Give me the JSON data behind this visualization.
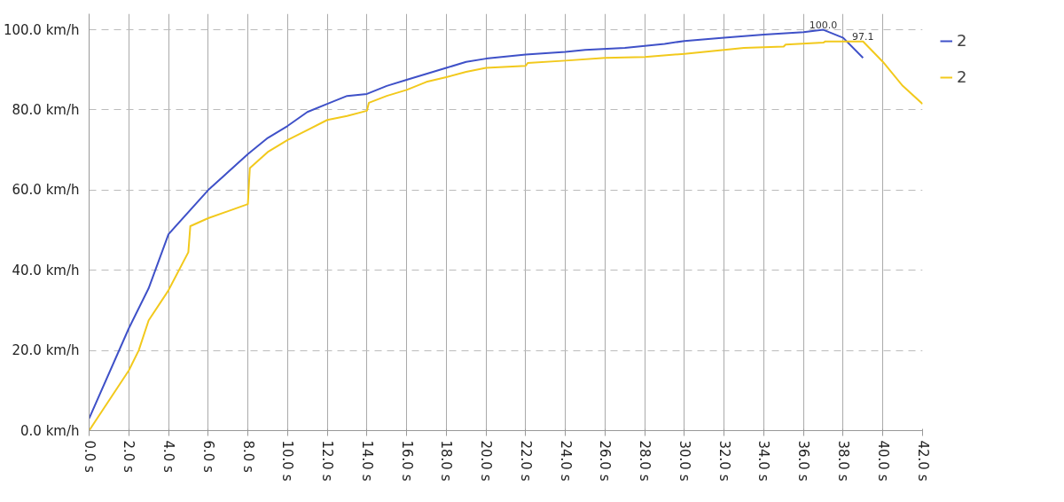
{
  "chart_data": {
    "type": "line",
    "xlim": [
      0,
      42
    ],
    "ylim": [
      0,
      104
    ],
    "xticks": [
      {
        "value": 0,
        "label": "0.0 s"
      },
      {
        "value": 2,
        "label": "2.0 s"
      },
      {
        "value": 4,
        "label": "4.0 s"
      },
      {
        "value": 6,
        "label": "6.0 s"
      },
      {
        "value": 8,
        "label": "8.0 s"
      },
      {
        "value": 10,
        "label": "10.0 s"
      },
      {
        "value": 12,
        "label": "12.0 s"
      },
      {
        "value": 14,
        "label": "14.0 s"
      },
      {
        "value": 16,
        "label": "16.0 s"
      },
      {
        "value": 18,
        "label": "18.0 s"
      },
      {
        "value": 20,
        "label": "20.0 s"
      },
      {
        "value": 22,
        "label": "22.0 s"
      },
      {
        "value": 24,
        "label": "24.0 s"
      },
      {
        "value": 26,
        "label": "26.0 s"
      },
      {
        "value": 28,
        "label": "28.0 s"
      },
      {
        "value": 30,
        "label": "30.0 s"
      },
      {
        "value": 32,
        "label": "32.0 s"
      },
      {
        "value": 34,
        "label": "34.0 s"
      },
      {
        "value": 36,
        "label": "36.0 s"
      },
      {
        "value": 38,
        "label": "38.0 s"
      },
      {
        "value": 40,
        "label": "40.0 s"
      },
      {
        "value": 42,
        "label": "42.0 s"
      }
    ],
    "yticks": [
      {
        "value": 0,
        "label": "0.0 km/h"
      },
      {
        "value": 20,
        "label": "20.0 km/h"
      },
      {
        "value": 40,
        "label": "40.0 km/h"
      },
      {
        "value": 60,
        "label": "60.0 km/h"
      },
      {
        "value": 80,
        "label": "80.0 km/h"
      },
      {
        "value": 100,
        "label": "100.0 km/h"
      }
    ],
    "grid": true,
    "legend": "right",
    "marker": "none",
    "line_style": "solid",
    "series": [
      {
        "name": "2",
        "color": "#3f51c8",
        "x": [
          0,
          2,
          3,
          4,
          6,
          8,
          9,
          10,
          11,
          12,
          13,
          14,
          15,
          16,
          17,
          18,
          19,
          20,
          22,
          24,
          25,
          27,
          28,
          29,
          30,
          32,
          34,
          36,
          37,
          38,
          39
        ],
        "values": [
          3,
          25.5,
          35.5,
          49,
          60,
          69,
          73,
          76,
          79.5,
          81.5,
          83.5,
          84,
          86,
          87.5,
          89,
          90.5,
          92,
          92.8,
          93.8,
          94.5,
          95,
          95.5,
          96,
          96.5,
          97.2,
          98,
          98.8,
          99.4,
          100,
          98,
          93
        ]
      },
      {
        "name": "2",
        "color": "#f2c91c",
        "x": [
          0,
          2,
          2.5,
          3,
          4,
          5,
          5.1,
          6,
          8,
          8.1,
          9,
          10,
          11,
          12,
          13,
          14,
          14.1,
          15,
          16,
          17,
          18,
          19,
          20,
          22,
          22.1,
          24,
          26,
          28,
          30,
          32,
          33,
          35,
          35.1,
          37,
          37.1,
          39,
          40,
          41,
          42
        ],
        "values": [
          0,
          15,
          20,
          27.5,
          35,
          44.5,
          51,
          53,
          56.5,
          65.5,
          69.5,
          72.5,
          75,
          77.5,
          78.5,
          79.8,
          81.8,
          83.5,
          85,
          87,
          88.2,
          89.5,
          90.5,
          91,
          91.7,
          92.3,
          93,
          93.2,
          94,
          95,
          95.5,
          95.8,
          96.3,
          96.8,
          97.1,
          97.1,
          92,
          86,
          81.5
        ]
      }
    ],
    "annotations": [
      {
        "text": "100.0",
        "x": 37,
        "y": 100
      },
      {
        "text": "97.1",
        "x": 39,
        "y": 97.1
      }
    ]
  }
}
